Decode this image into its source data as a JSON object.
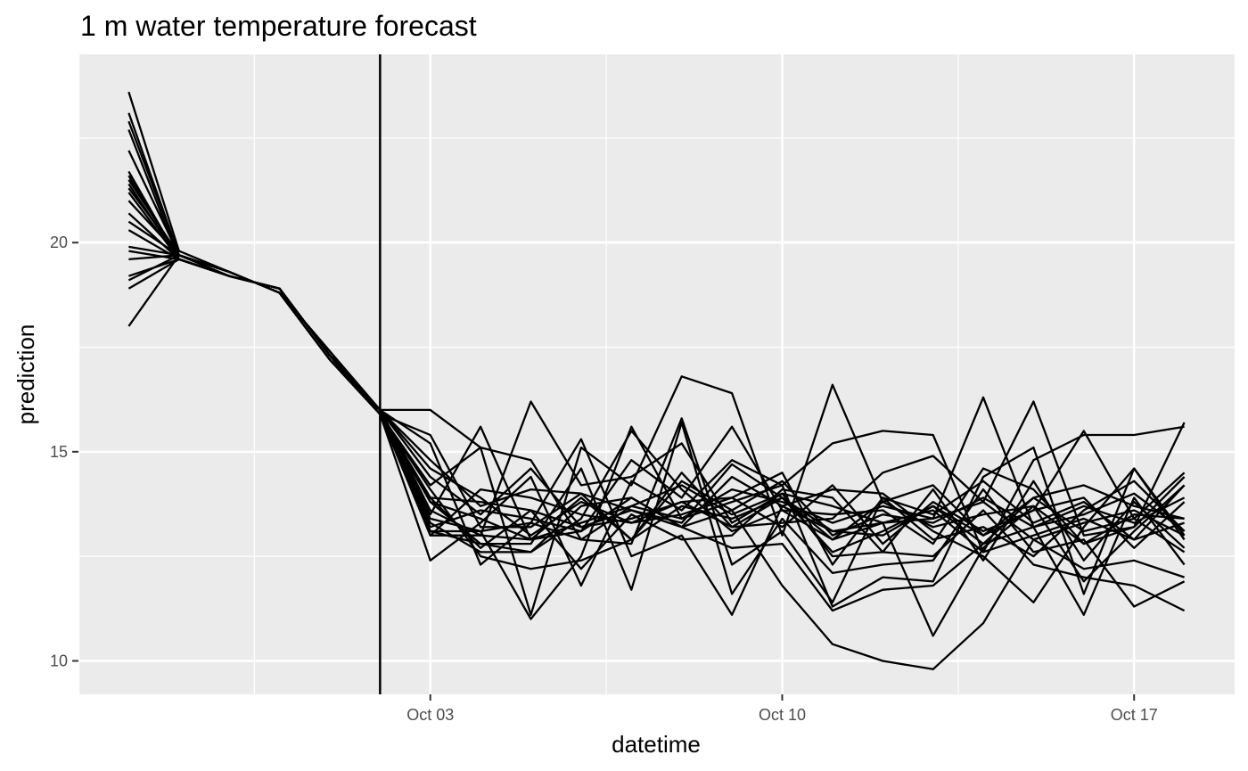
{
  "chart_data": {
    "type": "line",
    "title": "1 m water temperature forecast",
    "xlabel": "datetime",
    "ylabel": "prediction",
    "x_range": [
      "2023-09-26",
      "2023-10-19"
    ],
    "ylim": [
      9.2,
      24.5
    ],
    "x_ticks": [
      {
        "date": "2023-10-03",
        "label": "Oct 03"
      },
      {
        "date": "2023-10-10",
        "label": "Oct 10"
      },
      {
        "date": "2023-10-17",
        "label": "Oct 17"
      }
    ],
    "y_ticks": [
      10,
      15,
      20
    ],
    "grid": true,
    "legend": "none",
    "reference_line": {
      "date": "2023-10-02"
    },
    "line_color": "#000000",
    "panel_background": "#ebebeb",
    "grid_color": "#ffffff",
    "dates": [
      "2023-09-27",
      "2023-09-28",
      "2023-09-29",
      "2023-09-30",
      "2023-10-01",
      "2023-10-02",
      "2023-10-03",
      "2023-10-04",
      "2023-10-05",
      "2023-10-06",
      "2023-10-07",
      "2023-10-08",
      "2023-10-09",
      "2023-10-10",
      "2023-10-11",
      "2023-10-12",
      "2023-10-13",
      "2023-10-14",
      "2023-10-15",
      "2023-10-16",
      "2023-10-17",
      "2023-10-18"
    ],
    "series": [
      {
        "values": [
          23.6,
          19.8,
          19.3,
          18.8,
          17.4,
          16.0,
          13.8,
          13.4,
          12.9,
          13.3,
          13.7,
          14.2,
          13.5,
          14.0,
          13.7,
          13.3,
          13.6,
          12.6,
          13.0,
          13.4,
          12.9,
          13.3
        ]
      },
      {
        "values": [
          23.1,
          19.7,
          19.2,
          18.9,
          17.3,
          15.9,
          13.4,
          13.1,
          13.3,
          12.9,
          13.7,
          13.4,
          14.1,
          13.8,
          13.3,
          13.7,
          13.4,
          13.8,
          12.9,
          13.3,
          13.6,
          13.0
        ]
      },
      {
        "values": [
          22.9,
          19.7,
          19.3,
          18.8,
          17.2,
          15.9,
          13.9,
          12.7,
          13.6,
          13.2,
          13.4,
          13.8,
          13.2,
          13.9,
          12.9,
          13.8,
          13.2,
          13.5,
          13.7,
          12.8,
          13.5,
          13.4
        ]
      },
      {
        "values": [
          22.7,
          19.6,
          19.2,
          18.9,
          17.3,
          16.0,
          14.6,
          13.9,
          13.0,
          13.8,
          13.3,
          13.5,
          13.9,
          13.2,
          14.2,
          12.8,
          13.8,
          13.1,
          13.6,
          13.9,
          12.7,
          13.8
        ]
      },
      {
        "values": [
          22.2,
          19.7,
          19.3,
          18.8,
          17.4,
          15.9,
          13.2,
          13.6,
          13.4,
          13.1,
          13.9,
          13.2,
          13.6,
          14.3,
          13.0,
          13.5,
          13.3,
          13.9,
          13.2,
          13.5,
          14.0,
          13.1
        ]
      },
      {
        "values": [
          21.7,
          19.6,
          19.2,
          18.9,
          17.3,
          15.9,
          14.1,
          12.5,
          12.2,
          12.4,
          12.9,
          13.7,
          13.4,
          13.9,
          12.6,
          13.1,
          13.7,
          12.8,
          13.9,
          13.1,
          13.4,
          12.6
        ]
      },
      {
        "values": [
          21.5,
          19.7,
          19.3,
          18.8,
          17.2,
          16.0,
          13.0,
          13.0,
          16.2,
          14.2,
          14.4,
          15.2,
          13.3,
          14.0,
          12.5,
          12.6,
          12.5,
          13.6,
          12.3,
          12.0,
          11.8,
          11.2
        ]
      },
      {
        "values": [
          21.4,
          19.6,
          19.2,
          18.9,
          17.3,
          15.9,
          13.5,
          15.6,
          12.9,
          13.1,
          14.8,
          13.9,
          15.6,
          13.6,
          12.9,
          13.3,
          13.4,
          16.3,
          13.2,
          13.7,
          13.3,
          13.9
        ]
      },
      {
        "values": [
          21.3,
          19.7,
          19.3,
          18.8,
          17.4,
          15.9,
          14.2,
          15.1,
          11.1,
          15.1,
          14.2,
          16.8,
          16.4,
          13.0,
          16.6,
          13.8,
          14.2,
          13.0,
          13.6,
          15.5,
          13.4,
          14.5
        ]
      },
      {
        "values": [
          21.2,
          19.6,
          19.2,
          18.9,
          17.3,
          16.0,
          15.2,
          12.3,
          13.3,
          15.3,
          12.5,
          13.0,
          11.1,
          13.7,
          14.1,
          14.0,
          13.1,
          12.5,
          11.4,
          13.2,
          14.6,
          13.0
        ]
      },
      {
        "values": [
          21.0,
          19.7,
          19.3,
          18.8,
          17.2,
          15.9,
          13.1,
          13.1,
          11.0,
          12.5,
          15.6,
          13.4,
          13.8,
          14.2,
          15.2,
          15.5,
          15.4,
          12.6,
          14.8,
          15.4,
          15.4,
          15.6
        ]
      },
      {
        "values": [
          20.7,
          19.6,
          19.2,
          18.9,
          17.3,
          15.9,
          15.4,
          13.2,
          13.2,
          14.0,
          12.9,
          14.5,
          13.2,
          13.3,
          13.4,
          14.5,
          14.9,
          13.8,
          16.2,
          13.0,
          13.2,
          15.7
        ]
      },
      {
        "values": [
          20.5,
          19.7,
          19.3,
          18.8,
          17.4,
          16.0,
          16.0,
          15.1,
          14.8,
          12.9,
          12.8,
          15.8,
          12.3,
          13.1,
          11.4,
          13.9,
          13.5,
          14.3,
          13.3,
          13.8,
          12.9,
          14.2
        ]
      },
      {
        "values": [
          20.3,
          19.6,
          19.2,
          18.9,
          17.3,
          15.9,
          12.4,
          13.3,
          14.4,
          11.8,
          14.3,
          13.6,
          14.8,
          14.2,
          11.3,
          12.0,
          11.9,
          14.4,
          15.1,
          11.6,
          14.6,
          12.9
        ]
      },
      {
        "values": [
          19.9,
          19.7,
          19.3,
          18.8,
          17.2,
          15.9,
          13.8,
          12.8,
          12.8,
          14.6,
          11.7,
          15.7,
          11.6,
          13.4,
          12.1,
          12.3,
          12.4,
          14.1,
          12.6,
          12.9,
          11.3,
          11.9
        ]
      },
      {
        "values": [
          19.8,
          19.6,
          19.2,
          18.9,
          17.3,
          16.0,
          14.4,
          13.5,
          14.6,
          13.2,
          13.6,
          13.2,
          14.4,
          13.7,
          13.1,
          13.3,
          10.6,
          12.7,
          13.7,
          11.9,
          13.1,
          14.2
        ]
      },
      {
        "values": [
          19.6,
          19.7,
          19.3,
          18.8,
          17.4,
          15.9,
          13.0,
          14.1,
          13.9,
          13.5,
          13.3,
          13.8,
          13.9,
          14.5,
          12.3,
          13.9,
          12.9,
          13.2,
          12.5,
          13.6,
          14.3,
          13.1
        ]
      },
      {
        "values": [
          19.2,
          19.6,
          19.2,
          18.9,
          17.3,
          15.9,
          13.3,
          12.6,
          12.6,
          13.7,
          13.9,
          13.2,
          12.7,
          12.8,
          11.2,
          11.7,
          11.8,
          12.8,
          13.2,
          11.1,
          13.9,
          12.3
        ]
      },
      {
        "values": [
          19.1,
          19.7,
          19.3,
          18.8,
          17.2,
          16.0,
          13.6,
          13.0,
          12.9,
          13.9,
          12.9,
          14.3,
          13.6,
          11.8,
          10.4,
          10.0,
          9.8,
          10.9,
          12.9,
          12.2,
          12.4,
          12.0
        ]
      },
      {
        "values": [
          18.9,
          19.6,
          19.2,
          18.9,
          17.3,
          15.9,
          13.9,
          13.8,
          13.6,
          12.2,
          13.5,
          12.9,
          13.0,
          14.1,
          13.9,
          12.6,
          14.1,
          12.4,
          14.3,
          12.4,
          13.8,
          12.7
        ]
      },
      {
        "values": [
          18.0,
          19.7,
          19.3,
          18.8,
          17.4,
          15.9,
          13.1,
          12.8,
          12.6,
          13.4,
          15.5,
          14.1,
          13.1,
          13.6,
          13.5,
          13.6,
          12.8,
          14.6,
          14.1,
          12.8,
          13.2,
          14.4
        ]
      },
      {
        "values": [
          21.6,
          19.6,
          19.2,
          18.9,
          17.3,
          16.0,
          14.8,
          13.7,
          14.1,
          14.0,
          13.6,
          13.3,
          14.7,
          13.9,
          13.1,
          13.0,
          13.7,
          13.0,
          13.9,
          14.2,
          13.7,
          13.4
        ]
      }
    ]
  }
}
